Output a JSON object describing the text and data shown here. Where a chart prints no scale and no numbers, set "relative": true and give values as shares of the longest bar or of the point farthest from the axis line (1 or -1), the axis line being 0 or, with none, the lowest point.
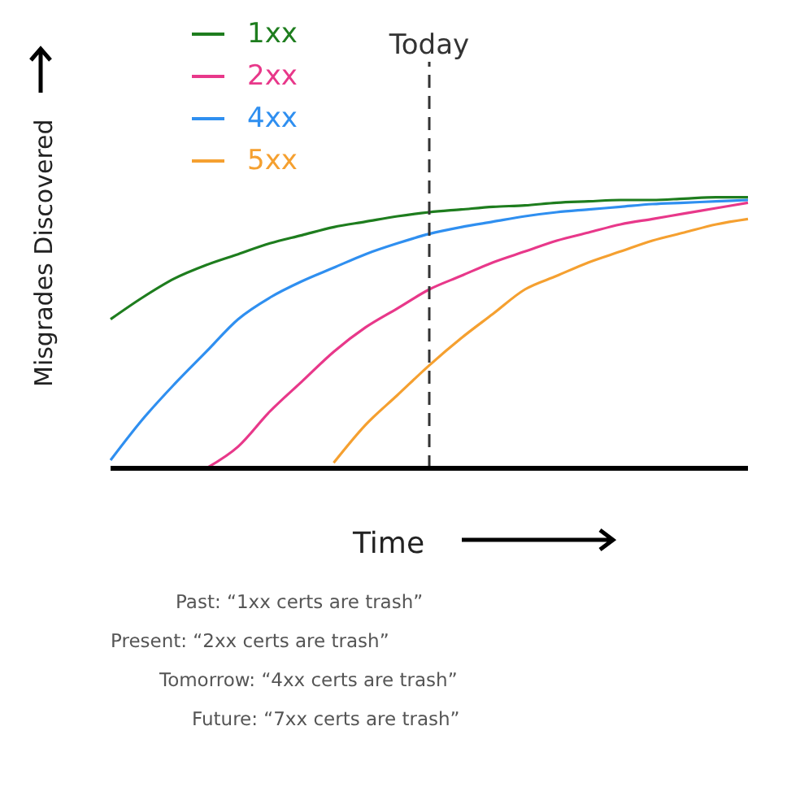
{
  "chart_data": {
    "type": "line",
    "relative": true,
    "xlabel": "Time",
    "ylabel": "Misgrades Discovered",
    "grid": false,
    "legend": "top left",
    "marker": "none",
    "line_style": "solid",
    "categories": [
      null,
      null,
      null,
      null,
      null,
      null,
      null,
      null,
      null,
      null,
      null,
      null,
      null,
      null,
      null,
      null,
      null,
      null,
      null,
      null,
      null
    ],
    "ref_lines": [
      {
        "axis": "x",
        "label": "Today",
        "line_style": "dashed",
        "color": "#333333"
      }
    ],
    "series": [
      {
        "name": "1xx",
        "color": "#1e7d1e",
        "values": [
          0.55,
          0.63,
          0.7,
          0.75,
          0.79,
          0.83,
          0.86,
          0.89,
          0.91,
          0.93,
          0.945,
          0.955,
          0.965,
          0.97,
          0.98,
          0.985,
          0.99,
          0.99,
          0.995,
          1,
          1
        ]
      },
      {
        "name": "2xx",
        "color": "#e8388a",
        "values": [
          null,
          null,
          null,
          0,
          0.08,
          0.21,
          0.32,
          0.43,
          0.52,
          0.59,
          0.66,
          0.71,
          0.76,
          0.8,
          0.84,
          0.87,
          0.9,
          0.92,
          0.94,
          0.96,
          0.98
        ]
      },
      {
        "name": "4xx",
        "color": "#2f8ff0",
        "values": [
          0.03,
          0.18,
          0.31,
          0.43,
          0.55,
          0.63,
          0.69,
          0.74,
          0.79,
          0.83,
          0.865,
          0.89,
          0.91,
          0.93,
          0.945,
          0.955,
          0.965,
          0.975,
          0.98,
          0.985,
          0.99
        ]
      },
      {
        "name": "5xx",
        "color": "#f5a030",
        "values": [
          null,
          null,
          null,
          null,
          null,
          null,
          null,
          0.02,
          0.16,
          0.27,
          0.38,
          0.48,
          0.57,
          0.66,
          0.71,
          0.76,
          0.8,
          0.84,
          0.87,
          0.9,
          0.92
        ]
      }
    ],
    "annotations": [
      "Past: “1xx certs are trash”",
      "Present: “2xx certs are trash”",
      "Tomorrow: “4xx certs are trash”",
      "Future: “7xx certs are trash”"
    ]
  }
}
